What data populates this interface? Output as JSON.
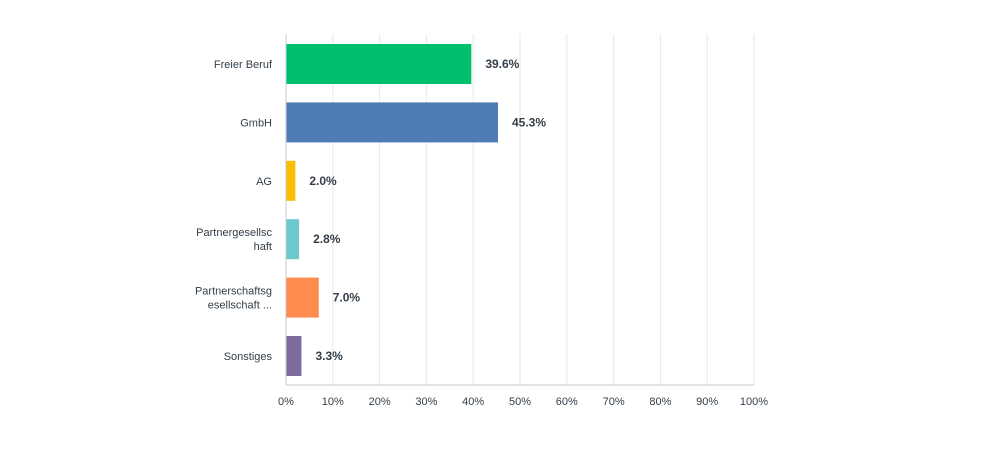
{
  "chart_data": {
    "type": "bar",
    "orientation": "horizontal",
    "categories": [
      [
        "Freier Beruf"
      ],
      [
        "GmbH"
      ],
      [
        "AG"
      ],
      [
        "Partnergesellsc",
        "haft"
      ],
      [
        "Partnerschaftsg",
        "esellschaft ..."
      ],
      [
        "Sonstiges"
      ]
    ],
    "values": [
      39.6,
      45.3,
      2.0,
      2.8,
      7.0,
      3.3
    ],
    "value_labels": [
      "39.6%",
      "45.3%",
      "2.0%",
      "2.8%",
      "7.0%",
      "3.3%"
    ],
    "colors": [
      "#00bf6f",
      "#507cb6",
      "#f9be00",
      "#6bc8cd",
      "#ff8b4f",
      "#7f6aa1"
    ],
    "xlim": [
      0,
      100
    ],
    "xticks": [
      0,
      10,
      20,
      30,
      40,
      50,
      60,
      70,
      80,
      90,
      100
    ],
    "xtick_labels": [
      "0%",
      "10%",
      "20%",
      "30%",
      "40%",
      "50%",
      "60%",
      "70%",
      "80%",
      "90%",
      "100%"
    ],
    "grid": true,
    "title": "",
    "xlabel": "",
    "ylabel": ""
  }
}
